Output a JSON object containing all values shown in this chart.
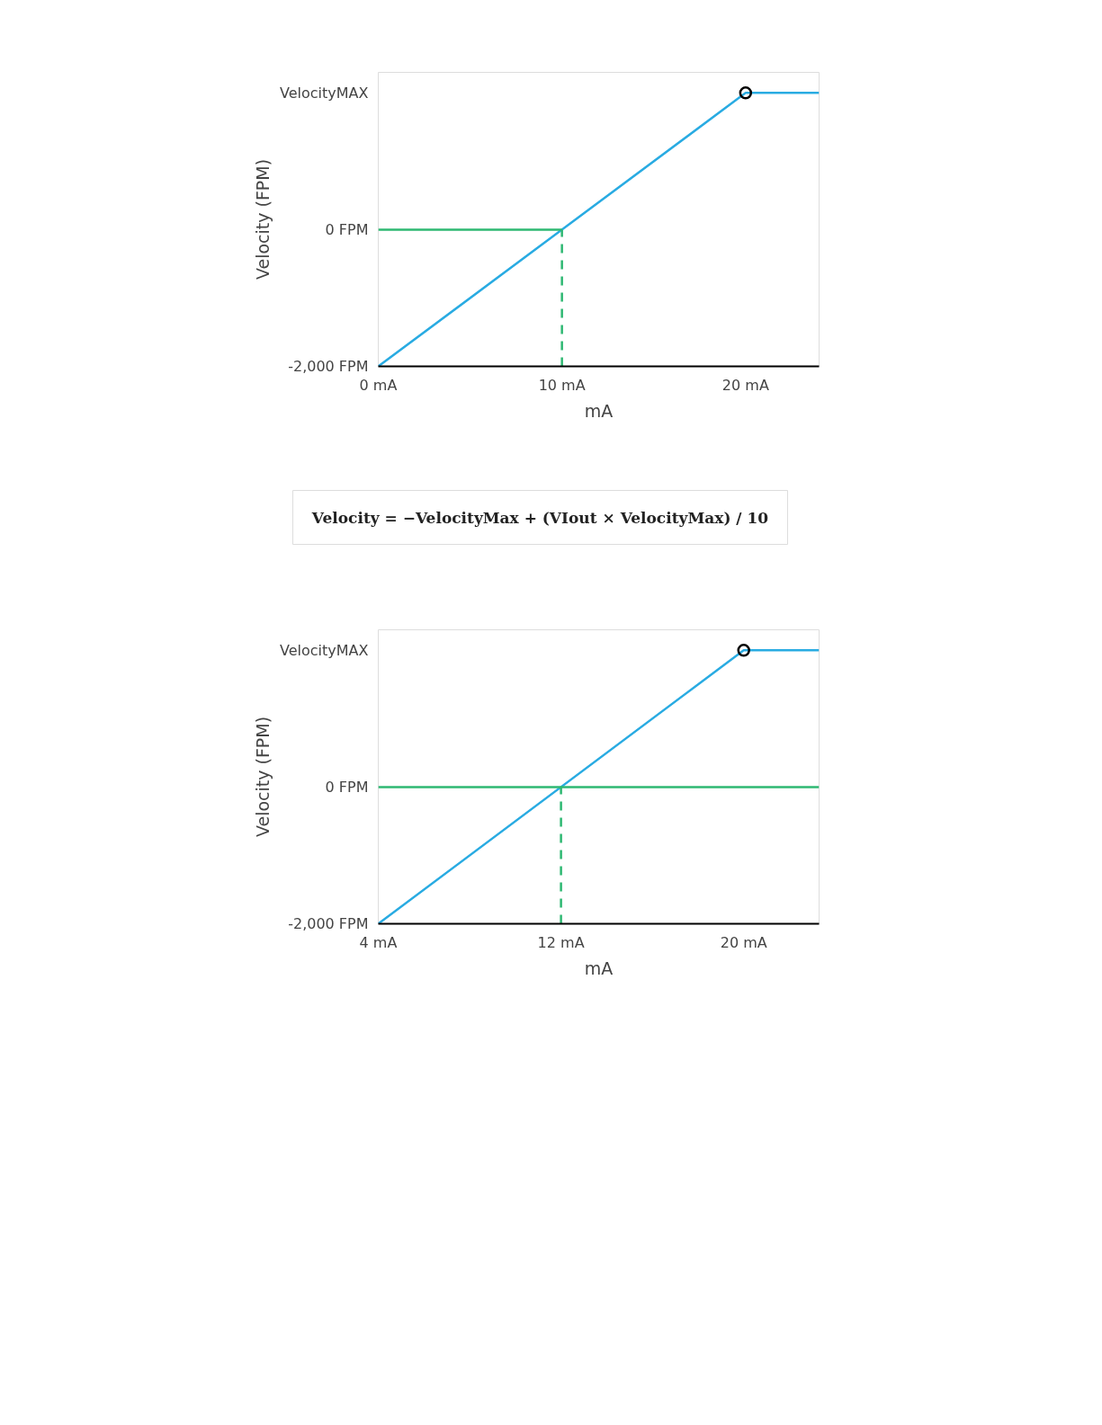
{
  "chart_data": [
    {
      "type": "line",
      "xlabel": "mA",
      "ylabel": "Velocity (FPM)",
      "xlim": [
        0,
        24
      ],
      "ylim": [
        -2000,
        2300
      ],
      "xticks": [
        {
          "value": 0,
          "label": "0 mA"
        },
        {
          "value": 10,
          "label": "10 mA"
        },
        {
          "value": 20,
          "label": "20 mA"
        }
      ],
      "yticks": [
        {
          "value": -2000,
          "label": "-2,000 FPM"
        },
        {
          "value": 0,
          "label": "0 FPM"
        },
        {
          "value": 2000,
          "label": "VelocityMAX"
        }
      ],
      "grid": false,
      "series": [
        {
          "color": "#29abe2",
          "x": [
            0,
            20,
            24
          ],
          "values": [
            -2000,
            2000,
            2000
          ]
        },
        {
          "color": "#2eb872",
          "x": [
            0,
            10
          ],
          "values": [
            0,
            0
          ]
        },
        {
          "color": "#2eb872",
          "x": [
            10,
            10
          ],
          "values": [
            -2000,
            0
          ],
          "line_style": "dashed"
        },
        {
          "type": "scatter",
          "color": "#000000",
          "x": [
            20
          ],
          "values": [
            2000
          ],
          "marker": "circle"
        }
      ]
    },
    {
      "type": "other",
      "annotations": [
        "Velocity = −VelocityMax + (VIout × VelocityMax) / 10"
      ]
    },
    {
      "type": "line",
      "xlabel": "mA",
      "ylabel": "Velocity (FPM)",
      "xlim": [
        4,
        23.3
      ],
      "ylim": [
        -2000,
        2300
      ],
      "xticks": [
        {
          "value": 4,
          "label": "4 mA"
        },
        {
          "value": 12,
          "label": "12 mA"
        },
        {
          "value": 20,
          "label": "20 mA"
        }
      ],
      "yticks": [
        {
          "value": -2000,
          "label": "-2,000 FPM"
        },
        {
          "value": 0,
          "label": "0 FPM"
        },
        {
          "value": 2000,
          "label": "VelocityMAX"
        }
      ],
      "grid": false,
      "series": [
        {
          "color": "#29abe2",
          "x": [
            4,
            20,
            23.3
          ],
          "values": [
            -2000,
            2000,
            2000
          ]
        },
        {
          "color": "#2eb872",
          "x": [
            4,
            23.3
          ],
          "values": [
            0,
            0
          ]
        },
        {
          "color": "#2eb872",
          "x": [
            12,
            12
          ],
          "values": [
            -2000,
            0
          ],
          "line_style": "dashed"
        },
        {
          "type": "scatter",
          "color": "#000000",
          "x": [
            20
          ],
          "values": [
            2000
          ],
          "marker": "circle"
        }
      ]
    }
  ]
}
